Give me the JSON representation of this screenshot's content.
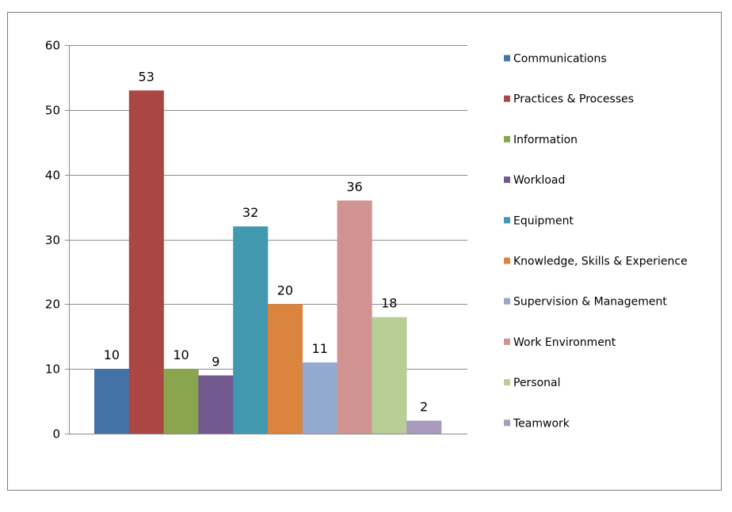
{
  "chart_data": {
    "type": "bar",
    "title": "",
    "xlabel": "",
    "ylabel": "",
    "ylim": [
      0,
      60
    ],
    "yticks": [
      0,
      10,
      20,
      30,
      40,
      50,
      60
    ],
    "grid": true,
    "legend_position": "right",
    "categories": [
      "Communications",
      "Practices & Processes",
      "Information",
      "Workload",
      "Equipment",
      "Knowledge, Skills & Experience",
      "Supervision & Management",
      "Work Environment",
      "Personal",
      "Teamwork"
    ],
    "values": [
      10,
      53,
      10,
      9,
      32,
      20,
      11,
      36,
      18,
      2
    ],
    "colors": [
      "#4572a7",
      "#aa4643",
      "#89a54e",
      "#71588f",
      "#4198af",
      "#db843d",
      "#93a9cf",
      "#d19392",
      "#b9cd96",
      "#a99bbd"
    ]
  }
}
